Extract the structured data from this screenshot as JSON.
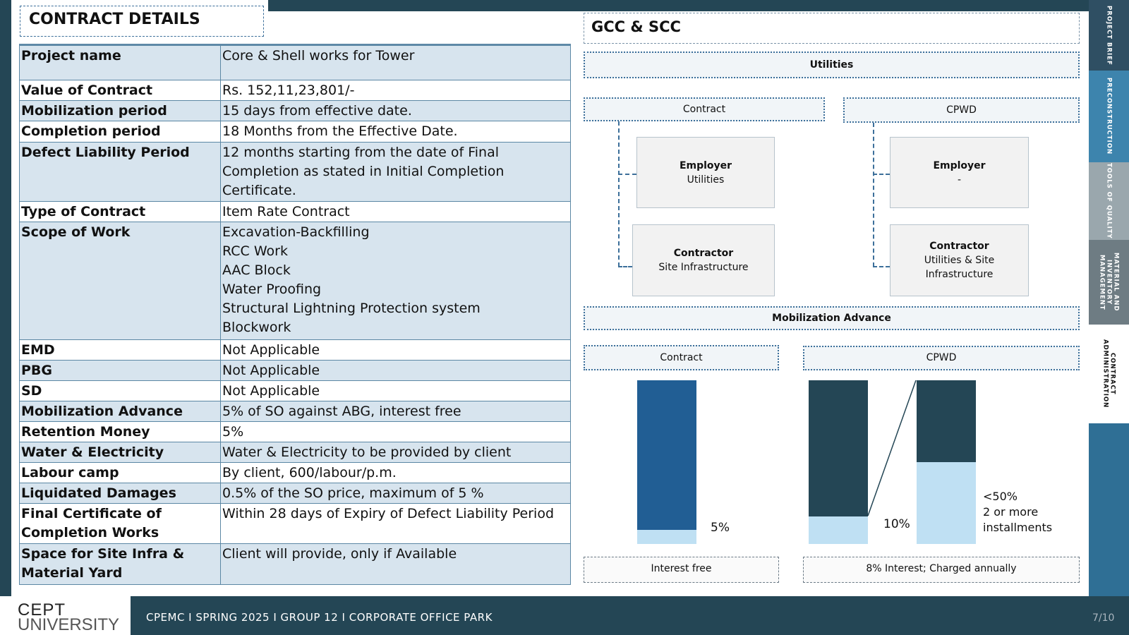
{
  "left": {
    "title": "CONTRACT DETAILS",
    "rows": [
      {
        "key": "Project name",
        "value": "Core & Shell works for Tower"
      },
      {
        "key": "Value of Contract",
        "value": "Rs. 152,11,23,801/-"
      },
      {
        "key": "Mobilization period",
        "value": "15 days from effective date."
      },
      {
        "key": "Completion period",
        "value": "18 Months from the Effective Date."
      },
      {
        "key": "Defect Liability Period",
        "value": "12 months starting from the date of Final\nCompletion as stated in Initial Completion\nCertificate."
      },
      {
        "key": "Type of Contract",
        "value": "Item Rate Contract"
      },
      {
        "key": "Scope of Work",
        "value": "Excavation-Backfilling\nRCC Work\nAAC Block\nWater Proofing\nStructural Lightning Protection system\nBlockwork"
      },
      {
        "key": "EMD",
        "value": "Not Applicable"
      },
      {
        "key": "PBG",
        "value": "Not Applicable"
      },
      {
        "key": "SD",
        "value": "Not Applicable"
      },
      {
        "key": "Mobilization Advance",
        "value": "5% of SO against ABG, interest free"
      },
      {
        "key": "Retention Money",
        "value": "5%"
      },
      {
        "key": "Water & Electricity",
        "value": "Water & Electricity to be provided by client"
      },
      {
        "key": "Labour camp",
        "value": "By client, 600/labour/p.m."
      },
      {
        "key": "Liquidated Damages",
        "value": "0.5% of the SO price, maximum of 5 %"
      },
      {
        "key": "Final Certificate of\nCompletion Works",
        "value": "Within 28 days of Expiry of Defect Liability Period"
      },
      {
        "key": "Space for Site Infra &\nMaterial Yard",
        "value": "Client will provide, only if Available"
      }
    ]
  },
  "right": {
    "title": "GCC & SCC",
    "utilities": {
      "heading": "Utilities",
      "contract_label": "Contract",
      "cpwd_label": "CPWD",
      "contract_employer_title": "Employer",
      "contract_employer_sub": "Utilities",
      "contract_contractor_title": "Contractor",
      "contract_contractor_sub": "Site Infrastructure",
      "cpwd_employer_title": "Employer",
      "cpwd_employer_sub": "-",
      "cpwd_contractor_title": "Contractor",
      "cpwd_contractor_sub": "Utilities & Site\nInfrastructure"
    },
    "mobilization": {
      "heading": "Mobilization Advance",
      "contract_label": "Contract",
      "cpwd_label": "CPWD",
      "contract_pct": "5%",
      "cpwd_pct": "10%",
      "cpwd_note": "<50%\n2 or more\ninstallments",
      "contract_footer": "Interest free",
      "cpwd_footer": "8% Interest; Charged annually",
      "colors": {
        "dark": "#244655",
        "blue": "#215e94",
        "light": "#bfe0f3"
      },
      "contract_fraction": 0.05,
      "cpwd_fraction": 0.1,
      "cpwd_second_fraction": 0.5
    }
  },
  "tabs": [
    {
      "label": "PROJECT BRIEF",
      "color": "#2f4f63"
    },
    {
      "label": "PRECONSTRUCTION",
      "color": "#3d84ad"
    },
    {
      "label": "TOOLS OF QUALITY",
      "color": "#9aa7ad"
    },
    {
      "label": "MATERIAL AND INVENTORY MANAGEMENT",
      "color": "#6e7c83"
    },
    {
      "label": "CONTRACT ADMINISTRATION",
      "color": "#ffffff"
    },
    {
      "label": "",
      "color": "#2f6f95"
    }
  ],
  "footer": {
    "logo_top": "CEPT",
    "logo_bottom": "UNIVERSITY",
    "text": "CPEMC I SPRING 2025 I GROUP 12 I CORPORATE  OFFICE  PARK",
    "page": "7/10"
  }
}
